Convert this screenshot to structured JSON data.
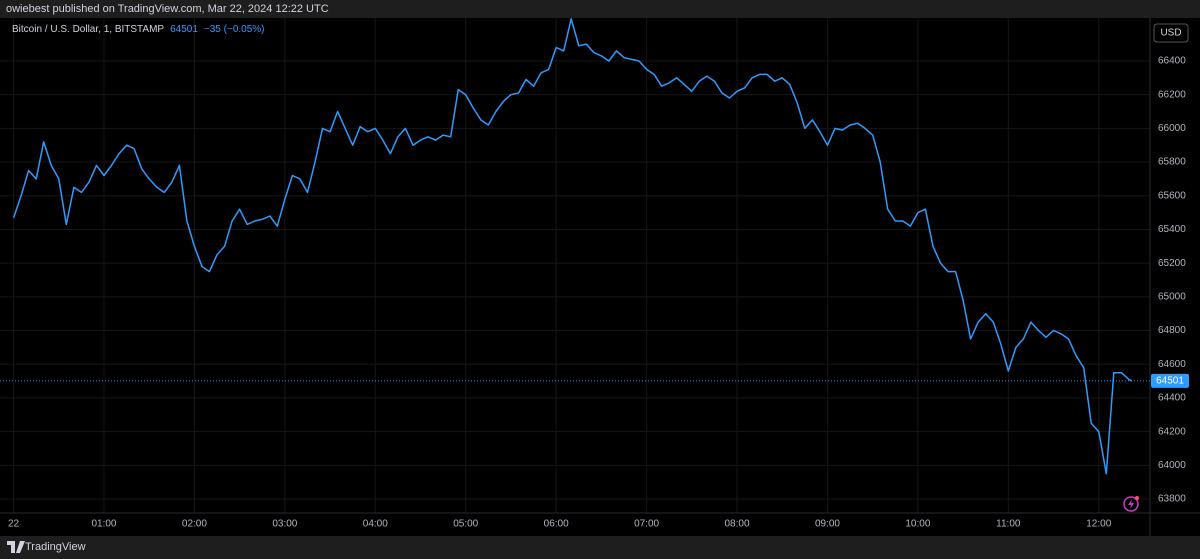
{
  "header": {
    "published": "owiebest published on TradingView.com, Mar 22, 2024 12:22 UTC"
  },
  "footer": {
    "brand": "TradingView"
  },
  "chart_data": {
    "type": "line",
    "legend": {
      "symbol": "Bitcoin / U.S. Dollar, 1, BITSTAMP",
      "change": "−35 (−0.05%)"
    },
    "currency": "USD",
    "last": 64501,
    "color": "#2e9bff",
    "grid": true,
    "xlim": [
      -9,
      754
    ],
    "xticks": [
      {
        "value": 0,
        "label": "22"
      },
      {
        "value": 60,
        "label": "01:00"
      },
      {
        "value": 120,
        "label": "02:00"
      },
      {
        "value": 180,
        "label": "03:00"
      },
      {
        "value": 240,
        "label": "04:00"
      },
      {
        "value": 300,
        "label": "05:00"
      },
      {
        "value": 360,
        "label": "06:00"
      },
      {
        "value": 420,
        "label": "07:00"
      },
      {
        "value": 480,
        "label": "08:00"
      },
      {
        "value": 540,
        "label": "09:00"
      },
      {
        "value": 600,
        "label": "10:00"
      },
      {
        "value": 660,
        "label": "11:00"
      },
      {
        "value": 720,
        "label": "12:00"
      }
    ],
    "ylim": [
      63717,
      66655
    ],
    "yticks": [
      63800,
      64000,
      64200,
      64400,
      64600,
      64800,
      65000,
      65200,
      65400,
      65600,
      65800,
      66000,
      66200,
      66400
    ],
    "x": [
      0,
      5,
      10,
      15,
      20,
      25,
      30,
      35,
      40,
      45,
      50,
      55,
      60,
      65,
      70,
      75,
      80,
      85,
      90,
      95,
      100,
      105,
      110,
      115,
      120,
      125,
      130,
      135,
      140,
      145,
      150,
      155,
      160,
      165,
      170,
      175,
      180,
      185,
      190,
      195,
      200,
      205,
      210,
      215,
      220,
      225,
      230,
      235,
      240,
      245,
      250,
      255,
      260,
      265,
      270,
      275,
      280,
      285,
      290,
      295,
      300,
      305,
      310,
      315,
      320,
      325,
      330,
      335,
      340,
      345,
      350,
      355,
      360,
      365,
      370,
      375,
      380,
      385,
      390,
      395,
      400,
      405,
      410,
      415,
      420,
      425,
      430,
      435,
      440,
      445,
      450,
      455,
      460,
      465,
      470,
      475,
      480,
      485,
      490,
      495,
      500,
      505,
      510,
      515,
      520,
      525,
      530,
      535,
      540,
      545,
      550,
      555,
      560,
      565,
      570,
      575,
      580,
      585,
      590,
      595,
      600,
      605,
      610,
      615,
      620,
      625,
      630,
      635,
      640,
      645,
      650,
      655,
      660,
      665,
      670,
      675,
      680,
      685,
      690,
      695,
      700,
      705,
      710,
      715,
      720,
      725,
      730,
      735,
      740,
      742
    ],
    "values": [
      65470,
      65600,
      65750,
      65700,
      65920,
      65780,
      65700,
      65430,
      65650,
      65620,
      65680,
      65780,
      65720,
      65780,
      65850,
      65900,
      65880,
      65760,
      65700,
      65650,
      65620,
      65680,
      65780,
      65450,
      65300,
      65180,
      65150,
      65250,
      65300,
      65450,
      65520,
      65430,
      65450,
      65460,
      65480,
      65420,
      65580,
      65720,
      65700,
      65620,
      65800,
      66000,
      65980,
      66100,
      66000,
      65900,
      66010,
      65980,
      66000,
      65930,
      65850,
      65950,
      66000,
      65900,
      65930,
      65950,
      65930,
      65960,
      65950,
      66230,
      66200,
      66120,
      66050,
      66020,
      66100,
      66160,
      66200,
      66210,
      66290,
      66250,
      66330,
      66350,
      66480,
      66460,
      66650,
      66490,
      66500,
      66450,
      66430,
      66400,
      66460,
      66420,
      66410,
      66400,
      66350,
      66320,
      66250,
      66270,
      66300,
      66260,
      66220,
      66280,
      66310,
      66280,
      66210,
      66180,
      66220,
      66240,
      66300,
      66320,
      66320,
      66280,
      66300,
      66260,
      66150,
      66000,
      66050,
      65980,
      65900,
      66000,
      65990,
      66020,
      66030,
      66000,
      65960,
      65800,
      65520,
      65450,
      65450,
      65420,
      65500,
      65520,
      65300,
      65200,
      65150,
      65150,
      64980,
      64750,
      64850,
      64900,
      64850,
      64720,
      64560,
      64700,
      64750,
      64850,
      64800,
      64760,
      64800,
      64780,
      64750,
      64650,
      64580,
      64250,
      64200,
      63950,
      64550,
      64550,
      64510,
      64501
    ]
  }
}
